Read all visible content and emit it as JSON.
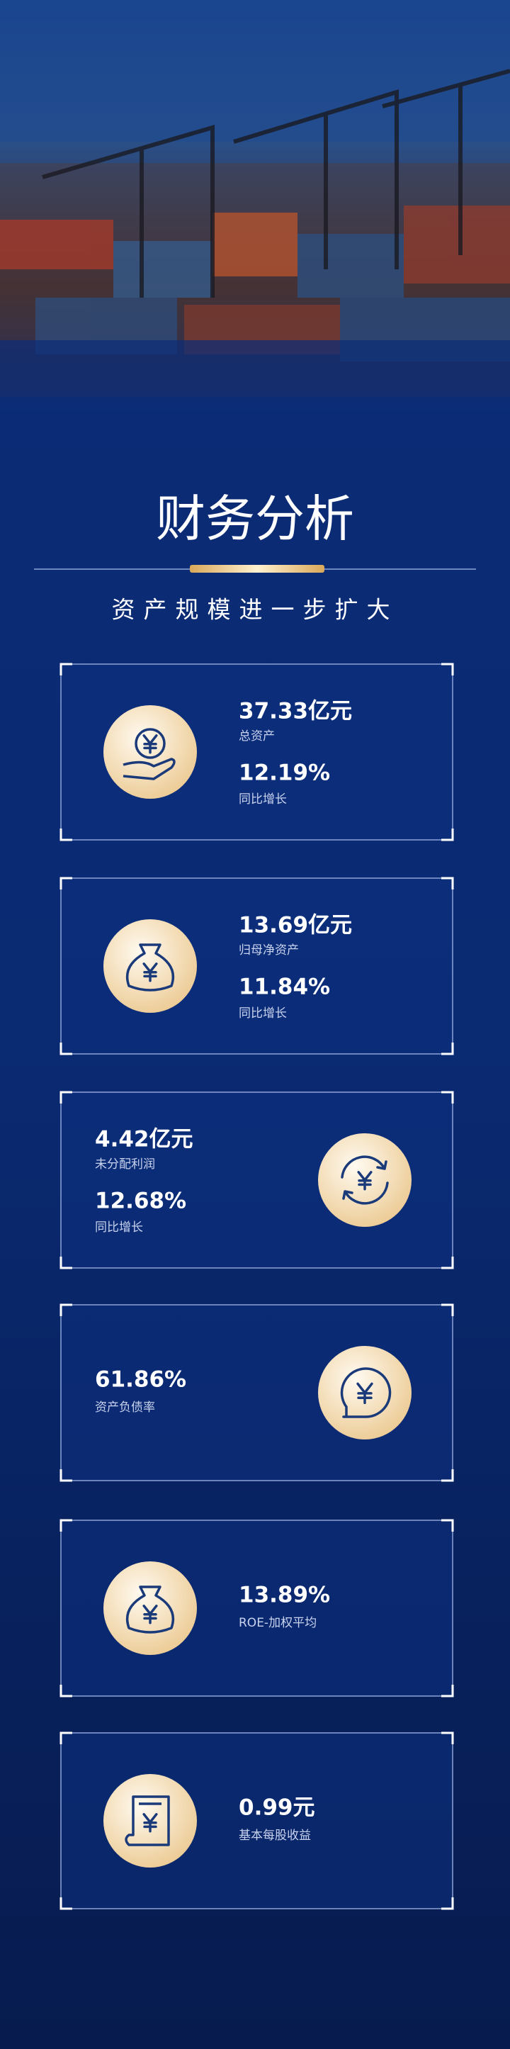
{
  "header": {
    "title": "财务分析",
    "subtitle": "资产规模进一步扩大"
  },
  "cards": [
    {
      "items": [
        {
          "value": "37.33亿元",
          "label": "总资产"
        },
        {
          "value": "12.19%",
          "label": "同比增长"
        }
      ]
    },
    {
      "items": [
        {
          "value": "13.69亿元",
          "label": "归母净资产"
        },
        {
          "value": "11.84%",
          "label": "同比增长"
        }
      ]
    },
    {
      "items": [
        {
          "value": "4.42亿元",
          "label": "未分配利润"
        },
        {
          "value": "12.68%",
          "label": "同比增长"
        }
      ]
    },
    {
      "items": [
        {
          "value": "61.86%",
          "label": "资产负债率"
        }
      ]
    },
    {
      "items": [
        {
          "value": "13.89%",
          "label": "ROE-加权平均"
        }
      ]
    },
    {
      "items": [
        {
          "value": "0.99元",
          "label": "基本每股收益"
        }
      ]
    }
  ]
}
